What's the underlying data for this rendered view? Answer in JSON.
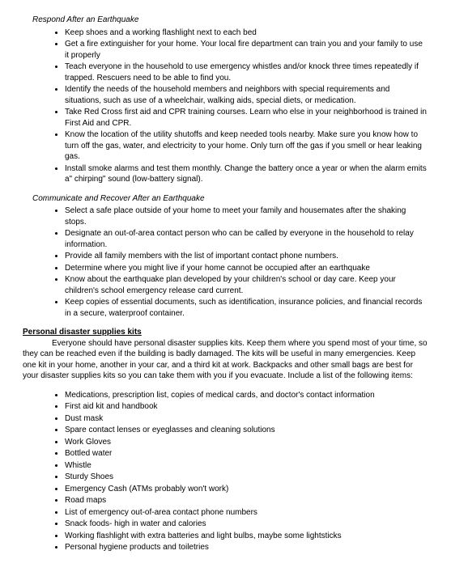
{
  "sections": {
    "respond": {
      "heading": "Respond After an Earthquake",
      "items": [
        "Keep shoes and a working flashlight next to each bed",
        "Get a fire extinguisher for your home. Your local fire department can train you and your family to use it properly",
        "Teach everyone in the household to use emergency whistles and/or knock three times repeatedly if trapped. Rescuers need to be able to find you.",
        "Identify the needs of the household members and neighbors with special requirements and situations, such as use of a wheelchair, walking aids, special diets, or medication.",
        "Take Red Cross first aid and CPR training courses. Learn who else in your neighborhood is trained in First Aid and CPR.",
        "Know the location of the utility shutoffs and keep needed tools nearby. Make sure you know how to turn off the gas, water, and electricity to your home. Only turn off the gas if you smell or hear leaking gas.",
        "Install smoke alarms and test them monthly. Change the battery once a year or when the alarm emits a\" chirping\" sound (low-battery signal)."
      ]
    },
    "communicate": {
      "heading": "Communicate and Recover After an Earthquake",
      "items": [
        "Select a safe place outside of your home to meet your family and housemates after the shaking stops.",
        "Designate an out-of-area contact person who can be called by everyone in the household to relay information.",
        "Provide all family members with the list of important contact phone numbers.",
        "Determine where you might live if your home cannot be occupied after an earthquake",
        "Know about the earthquake plan developed by your children's school or day care. Keep your children's school emergency release card current.",
        "Keep copies of essential documents, such as identification, insurance policies, and financial records in a secure, waterproof container."
      ]
    },
    "kits": {
      "heading": "Personal disaster supplies kits",
      "intro": "Everyone should have personal disaster supplies kits. Keep them where you spend most of your time, so they can be reached even if the building is badly damaged. The kits will be useful in many emergencies. Keep one kit in your home, another in your car, and a third kit at work. Backpacks and other small bags are best for your disaster supplies kits so you can take them with you if you evacuate. Include a list of the following items:",
      "items": [
        "Medications, prescription list, copies of medical cards, and doctor's contact information",
        "First aid kit and handbook",
        "Dust mask",
        "Spare contact lenses or eyeglasses and cleaning solutions",
        "Work Gloves",
        "Bottled water",
        "Whistle",
        "Sturdy Shoes",
        "Emergency Cash (ATMs probably won't work)",
        "Road maps",
        "List of emergency out-of-area contact phone numbers",
        "Snack foods- high in water and calories",
        "Working flashlight with extra batteries and light bulbs, maybe some lightsticks",
        "Personal hygiene products and toiletries"
      ]
    }
  }
}
